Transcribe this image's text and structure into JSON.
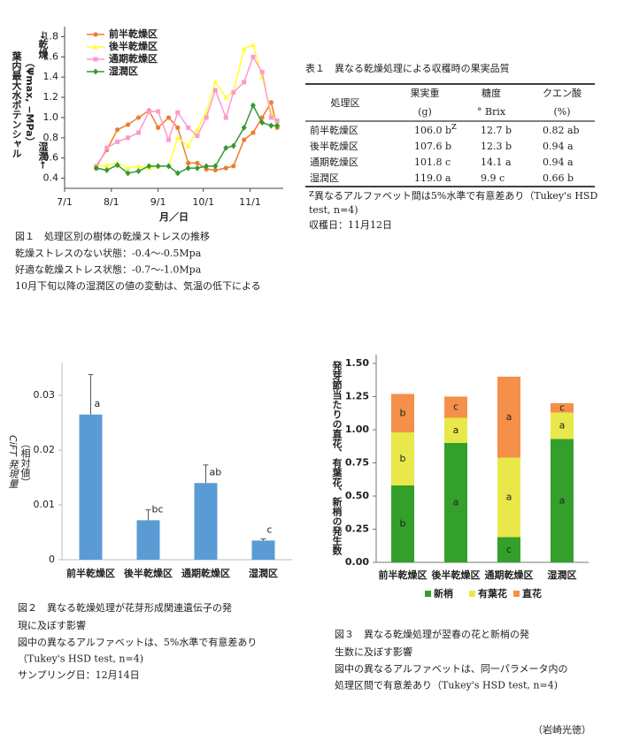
{
  "chart_data": [
    {
      "type": "line",
      "x_label": "月／日",
      "y_label": "葉内最大水ポテンシャル",
      "y_label_sub": "（Ψmax, −MPa）",
      "y_label_high": "→乾燥",
      "y_label_low": "湿潤←",
      "x": [
        21,
        28,
        35,
        42,
        49,
        56,
        62,
        69,
        75,
        82,
        88,
        94,
        100,
        107,
        112,
        119,
        125,
        131,
        137,
        141
      ],
      "xlim": [
        0,
        145
      ],
      "xticks": [
        {
          "value": 0,
          "label": "7/1"
        },
        {
          "value": 31,
          "label": "8/1"
        },
        {
          "value": 62,
          "label": "9/1"
        },
        {
          "value": 92,
          "label": "10/1"
        },
        {
          "value": 123,
          "label": "11/1"
        }
      ],
      "ylim": [
        0.3,
        1.9
      ],
      "yticks": [
        0.4,
        0.6,
        0.8,
        {
          "value": 1,
          "label": "1.0"
        },
        1.2,
        1.4,
        1.6,
        1.8
      ],
      "legend": "upper left",
      "series": [
        {
          "name": "前半乾燥区",
          "color": "#ed7d31",
          "marker": "circle",
          "values": [
            0.52,
            0.68,
            0.88,
            0.93,
            1.0,
            1.07,
            0.9,
            1.0,
            0.9,
            0.55,
            0.55,
            0.49,
            0.48,
            0.5,
            0.52,
            0.78,
            0.85,
            1.0,
            1.15,
            0.9
          ]
        },
        {
          "name": "後半乾燥区",
          "color": "#ffff33",
          "marker": "triangle",
          "values": [
            0.52,
            0.53,
            0.55,
            0.5,
            0.52,
            0.5,
            0.52,
            0.52,
            0.8,
            0.72,
            0.88,
            1.05,
            1.35,
            1.2,
            1.25,
            1.68,
            1.72,
            1.4,
            1.05,
            0.95
          ]
        },
        {
          "name": "通期乾燥区",
          "color": "#ff99cc",
          "marker": "square",
          "values": [
            0.5,
            0.7,
            0.76,
            0.8,
            0.85,
            1.06,
            1.06,
            0.78,
            1.05,
            0.9,
            0.82,
            1.0,
            1.27,
            1.0,
            1.25,
            1.35,
            1.6,
            1.45,
            1.0,
            0.97
          ]
        },
        {
          "name": "湿潤区",
          "color": "#339933",
          "marker": "diamond",
          "values": [
            0.5,
            0.48,
            0.53,
            0.45,
            0.47,
            0.52,
            0.52,
            0.52,
            0.45,
            0.5,
            0.5,
            0.52,
            0.52,
            0.7,
            0.72,
            0.9,
            1.12,
            0.95,
            0.92,
            0.92
          ]
        }
      ]
    },
    {
      "type": "bar",
      "y_label": "CiFT 発現量",
      "y_label_sub": "（相対値）",
      "categories": [
        "前半乾燥区",
        "後半乾燥区",
        "通期乾燥区",
        "湿潤区"
      ],
      "values": [
        0.0265,
        0.0072,
        0.014,
        0.0035
      ],
      "errors": [
        0.0073,
        0.0019,
        0.0033,
        0.0003
      ],
      "annotations": [
        "a",
        "bc",
        "ab",
        "c"
      ],
      "color": "#5b9bd5",
      "ylim": [
        0,
        0.036
      ],
      "yticks": [
        0,
        0.01,
        0.02,
        0.03
      ]
    },
    {
      "type": "stacked_bar",
      "y_label": "発芽節当たりの直花、有葉花、新梢の発生数",
      "categories": [
        "前半乾燥区",
        "後半乾燥区",
        "通期乾燥区",
        "湿潤区"
      ],
      "ylim": [
        0,
        1.5
      ],
      "yticks": [
        {
          "value": 0,
          "label": "0.00"
        },
        {
          "value": 0.25,
          "label": "0.25"
        },
        {
          "value": 0.5,
          "label": "0.50"
        },
        {
          "value": 0.75,
          "label": "0.75"
        },
        {
          "value": 1,
          "label": "1.00"
        },
        {
          "value": 1.25,
          "label": "1.25"
        },
        {
          "value": 1.5,
          "label": "1.50"
        }
      ],
      "legend": "bottom",
      "series": [
        {
          "name": "新梢",
          "color": "#33a02c",
          "values": [
            0.58,
            0.9,
            0.19,
            0.93
          ],
          "annotations": [
            "b",
            "a",
            "c",
            "a"
          ]
        },
        {
          "name": "有葉花",
          "color": "#e8e84a",
          "values": [
            0.4,
            0.19,
            0.6,
            0.2
          ],
          "annotations": [
            "b",
            "a",
            "a",
            "a"
          ]
        },
        {
          "name": "直花",
          "color": "#f4904a",
          "values": [
            0.29,
            0.16,
            0.61,
            0.07
          ],
          "annotations": [
            "b",
            "c",
            "a",
            "c"
          ]
        }
      ]
    }
  ],
  "table": {
    "title": "表１　異なる乾燥処理による収穫時の果実品質",
    "header": [
      "処理区",
      "果実重",
      "糖度",
      "クエン酸"
    ],
    "units": [
      "(g)",
      "°  Brix",
      "(%)"
    ],
    "rows": [
      [
        "前半乾燥区",
        "106.0  b",
        "12.7  b",
        "0.82  ab"
      ],
      [
        "後半乾燥区",
        "107.6  b",
        "12.3  b",
        "0.94  a"
      ],
      [
        "通期乾燥区",
        "101.8  c",
        "14.1  a",
        "0.94  a"
      ],
      [
        "湿潤区",
        "119.0  a",
        "9.9  c",
        "0.66  b"
      ]
    ],
    "footnote_mark": "z",
    "notes": [
      "異なるアルファベット間は5%水準で有意差あり（Tukey's HSD",
      "test, n=4)",
      "収穫日：11月12日"
    ]
  },
  "captions": [
    {
      "title": [
        "図１　処理区別の樹体の乾燥ストレスの推移"
      ],
      "notes": [
        "乾燥ストレスのない状態：-0.4～-0.5Mpa",
        "好適な乾燥ストレス状態：-0.7～-1.0Mpa",
        "10月下旬以降の湿潤区の値の変動は、気温の低下による"
      ]
    },
    {
      "title": [
        "図２　異なる乾燥処理が花芽形成関連遺伝子の発",
        "現に及ぼす影響"
      ],
      "notes": [
        "図中の異なるアルファベットは、5%水準で有意差あり",
        "（Tukey's HSD test, n=4)",
        "サンプリング日：12月14日"
      ]
    },
    {
      "title": [
        "図３　異なる乾燥処理が翌春の花と新梢の発",
        "生数に及ぼす影響"
      ],
      "notes": [
        "図中の異なるアルファベットは、同一パラメータ内の",
        "処理区間で有意差あり（Tukey's HSD test, n=4)"
      ]
    }
  ],
  "author": "（岩崎光徳）"
}
